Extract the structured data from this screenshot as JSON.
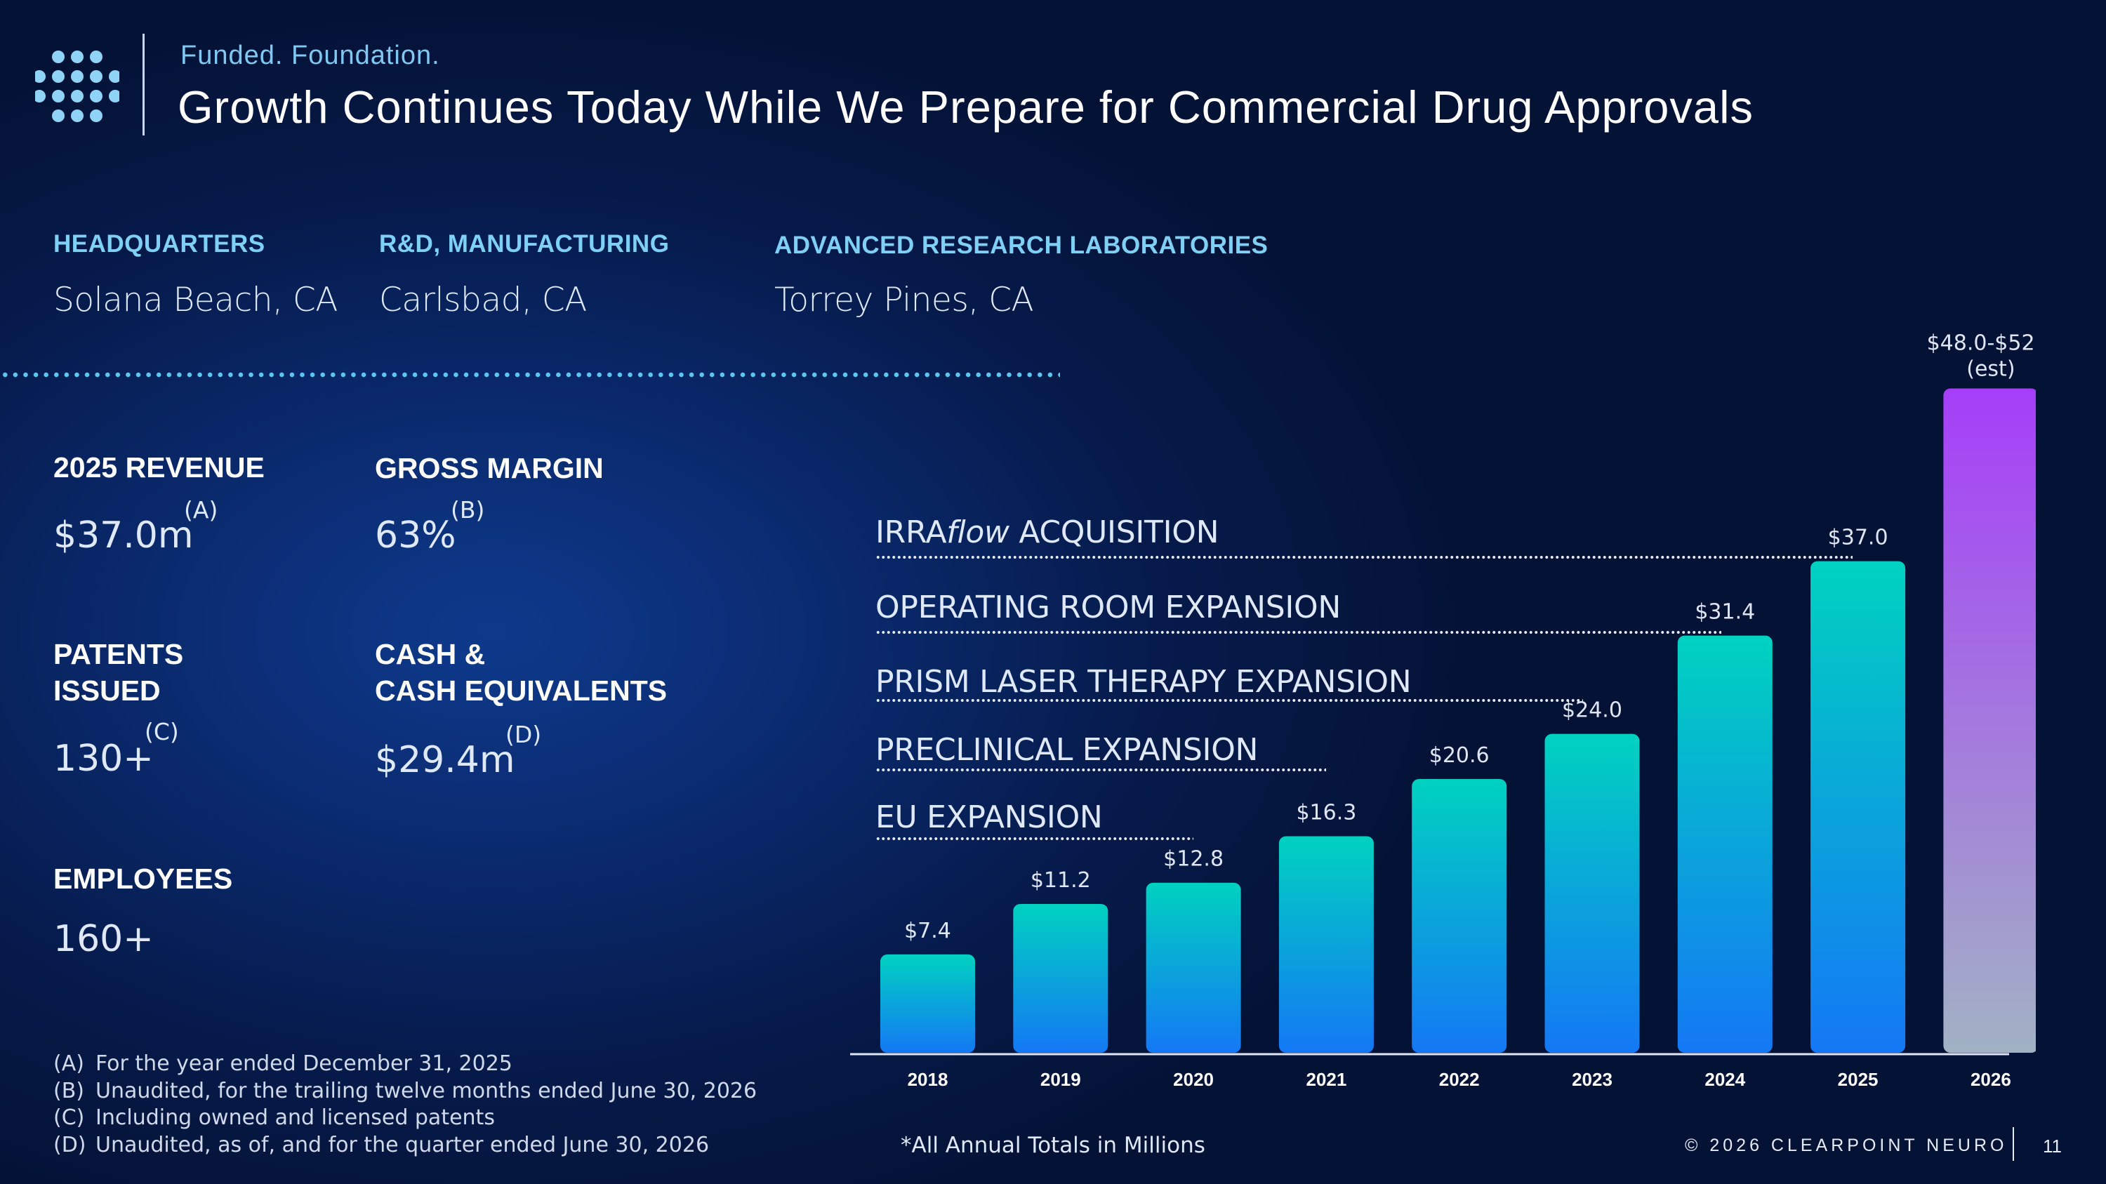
{
  "header": {
    "subtitle": "Funded. Foundation.",
    "title": "Growth Continues Today While We Prepare for Commercial Drug Approvals"
  },
  "locations": [
    {
      "label": "HEADQUARTERS",
      "value": "Solana Beach, CA"
    },
    {
      "label": "R&D, MANUFACTURING",
      "value": "Carlsbad, CA"
    },
    {
      "label": "ADVANCED RESEARCH LABORATORIES",
      "value": "Torrey Pines, CA"
    }
  ],
  "stats": {
    "revenue": {
      "label": "2025 REVENUE",
      "value": "$37.0m",
      "note": "(A)"
    },
    "margin": {
      "label": "GROSS MARGIN",
      "value": "63%",
      "note": "(B)"
    },
    "patents": {
      "label_line1": "PATENTS",
      "label_line2": "ISSUED",
      "value": "130+",
      "note": "(C)"
    },
    "cash": {
      "label_line1": "CASH &",
      "label_line2": "CASH EQUIVALENTS",
      "value": "$29.4m",
      "note": "(D)"
    },
    "employees": {
      "label": "EMPLOYEES",
      "value": "160+"
    }
  },
  "footnotes": [
    {
      "letter": "(A)",
      "text": "For the year ended December 31, 2025"
    },
    {
      "letter": "(B)",
      "text": "Unaudited, for the trailing twelve months ended June 30, 2026"
    },
    {
      "letter": "(C)",
      "text": "Including owned and licensed patents"
    },
    {
      "letter": "(D)",
      "text": "Unaudited, as of, and for the quarter ended June 30, 2026"
    }
  ],
  "milestones": {
    "irra_prefix": "IRRA",
    "irra_italic": "flow",
    "irra_suffix": " ACQUISITION",
    "operating": "OPERATING ROOM EXPANSION",
    "prism": "PRISM LASER THERAPY EXPANSION",
    "preclinical": "PRECLINICAL EXPANSION",
    "eu": "EU EXPANSION"
  },
  "chart_data": {
    "type": "bar",
    "categories": [
      "2018",
      "2019",
      "2020",
      "2021",
      "2022",
      "2023",
      "2024",
      "2025",
      "2026"
    ],
    "values": [
      7.4,
      11.2,
      12.8,
      16.3,
      20.6,
      24.0,
      31.4,
      37.0,
      50.0
    ],
    "data_labels": [
      "$7.4",
      "$11.2",
      "$12.8",
      "$16.3",
      "$20.6",
      "$24.0",
      "$31.4",
      "$37.0",
      "$48.0-$52.0"
    ],
    "estimate_note": "(est)",
    "estimate_range": [
      48.0,
      52.0
    ],
    "ylim": [
      0,
      60
    ],
    "grid": false,
    "colors": {
      "bar_top": "#00d2c0",
      "bar_bottom": "#1478f5",
      "est_top": "#a63ef8",
      "est_bottom": "#a2b2c4",
      "axis": "#dfe6f3"
    }
  },
  "footer": {
    "note": "*All Annual Totals in Millions",
    "copyright": "© 2026 CLEARPOINT NEURO",
    "page": "11"
  },
  "colors": {
    "accent_blue": "#7fd0f5",
    "background": "#061a4a"
  }
}
